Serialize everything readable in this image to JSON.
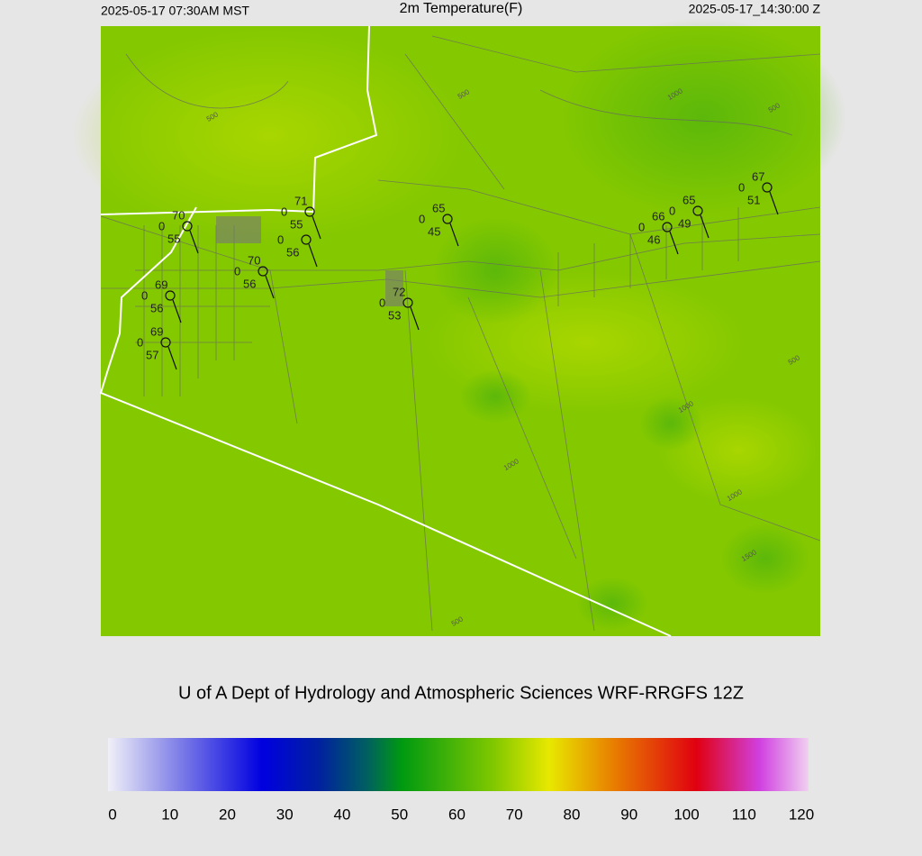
{
  "header": {
    "left": "2025-05-17 07:30AM MST",
    "title": "2m Temperature(F)",
    "right": "2025-05-17_14:30:00 Z"
  },
  "stations": [
    {
      "temp": "70",
      "wind": "0",
      "dew": "55"
    },
    {
      "temp": "71",
      "wind": "0",
      "dew": "55"
    },
    {
      "wind": "0",
      "dew": "56"
    },
    {
      "temp": "70",
      "wind": "0",
      "dew": "56"
    },
    {
      "temp": "69",
      "wind": "0",
      "dew": "56"
    },
    {
      "temp": "69",
      "wind": "0",
      "dew": "57"
    },
    {
      "temp": "72",
      "wind": "0",
      "dew": "53"
    },
    {
      "temp": "65",
      "wind": "0",
      "dew": "45"
    },
    {
      "temp": "66",
      "wind": "0",
      "dew": "46"
    },
    {
      "temp": "65",
      "wind": "0",
      "dew": "49"
    },
    {
      "temp": "67",
      "wind": "0",
      "dew": "51"
    }
  ],
  "contour_labels": [
    "500",
    "500",
    "1000",
    "500",
    "500",
    "1000",
    "1000",
    "1000",
    "1500",
    "500"
  ],
  "footer": "U of A Dept of Hydrology and Atmospheric Sciences WRF-RRGFS 12Z",
  "colorbar": {
    "min": 0,
    "max": 120,
    "ticks": [
      0,
      10,
      20,
      30,
      40,
      50,
      60,
      70,
      80,
      90,
      100,
      110,
      120
    ]
  }
}
